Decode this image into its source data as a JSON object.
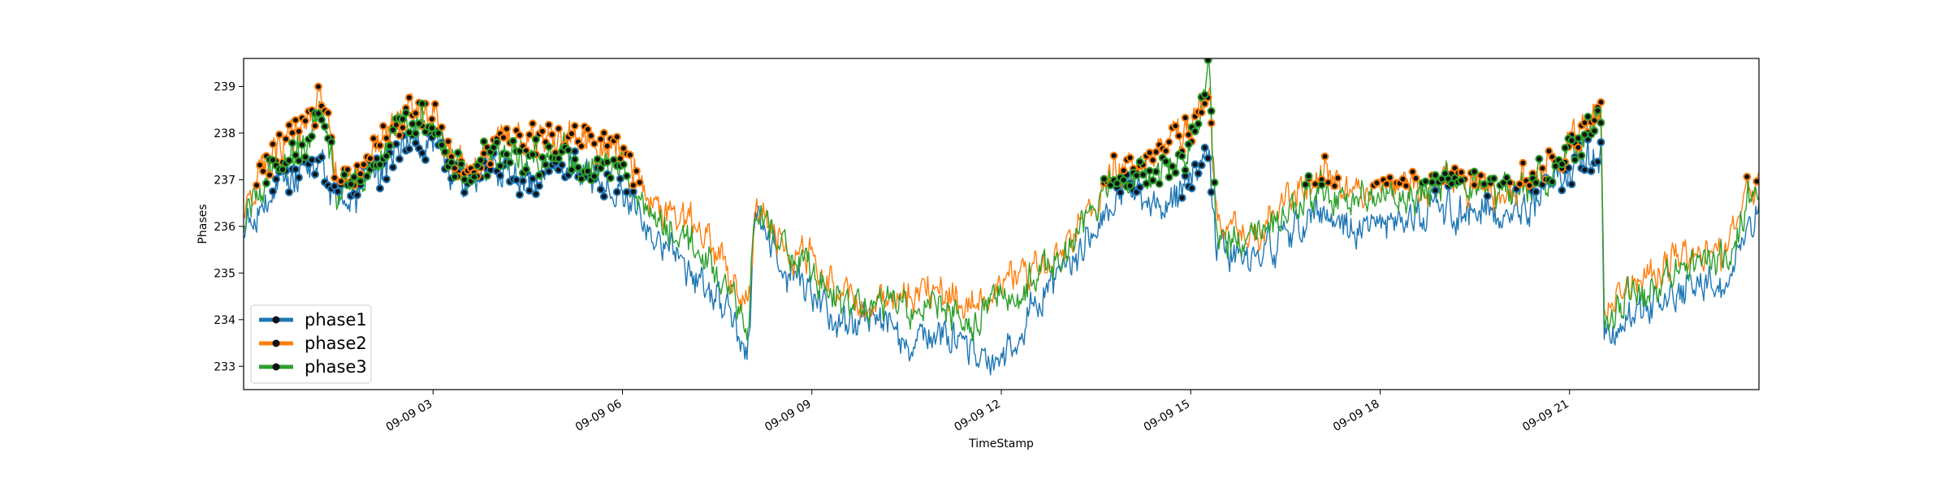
{
  "chart_data": {
    "type": "line",
    "title": "",
    "xlabel": "TimeStamp",
    "ylabel": "Phases",
    "xlim_hours": [
      0,
      24
    ],
    "ylim": [
      232.5,
      239.6
    ],
    "grid": false,
    "legend_position": "lower-left",
    "marker_threshold": 236.6,
    "x_ticks": [
      {
        "hour": 3,
        "label": "09-09 03"
      },
      {
        "hour": 6,
        "label": "09-09 06"
      },
      {
        "hour": 9,
        "label": "09-09 09"
      },
      {
        "hour": 12,
        "label": "09-09 12"
      },
      {
        "hour": 15,
        "label": "09-09 15"
      },
      {
        "hour": 18,
        "label": "09-09 18"
      },
      {
        "hour": 21,
        "label": "09-09 21"
      }
    ],
    "y_ticks": [
      {
        "value": 233,
        "label": "233"
      },
      {
        "value": 234,
        "label": "234"
      },
      {
        "value": 235,
        "label": "235"
      },
      {
        "value": 236,
        "label": "236"
      },
      {
        "value": 237,
        "label": "237"
      },
      {
        "value": 238,
        "label": "238"
      },
      {
        "value": 239,
        "label": "239"
      }
    ],
    "x_hours": [
      0,
      0.5,
      1,
      1.25,
      1.5,
      2,
      2.5,
      3,
      3.25,
      3.5,
      4,
      4.5,
      5,
      5.5,
      6,
      6.5,
      7,
      7.5,
      8,
      8.1,
      8.5,
      9,
      9.5,
      10,
      10.5,
      11,
      11.5,
      12,
      12.5,
      13,
      13.5,
      14,
      14.5,
      15,
      15.3,
      15.4,
      16,
      16.5,
      17,
      17.5,
      18,
      18.5,
      19,
      19.5,
      20,
      20.5,
      21,
      21.2,
      21.5,
      21.55,
      22,
      22.5,
      23,
      23.5,
      23.8,
      24
    ],
    "series": [
      {
        "name": "phase1",
        "color": "#1f77b4",
        "values": [
          236.0,
          236.9,
          237.1,
          237.4,
          236.3,
          237.0,
          237.7,
          237.9,
          237.2,
          236.9,
          237.3,
          236.9,
          237.3,
          237.1,
          236.8,
          235.8,
          235.0,
          234.4,
          233.4,
          236.2,
          235.3,
          234.5,
          233.8,
          234.2,
          233.5,
          233.7,
          233.3,
          233.2,
          234.2,
          235.0,
          236.0,
          236.9,
          236.3,
          237.0,
          237.6,
          235.5,
          235.3,
          235.8,
          236.3,
          236.0,
          236.1,
          236.2,
          236.4,
          236.3,
          236.2,
          236.6,
          237.3,
          237.6,
          237.5,
          233.6,
          234.0,
          234.5,
          234.8,
          234.8,
          235.8,
          236.4
        ]
      },
      {
        "name": "phase2",
        "color": "#ff7f0e",
        "values": [
          236.4,
          237.6,
          238.1,
          238.7,
          236.9,
          237.5,
          238.4,
          238.5,
          237.7,
          237.2,
          237.9,
          237.8,
          237.9,
          237.9,
          237.7,
          236.4,
          236.1,
          235.5,
          234.2,
          236.5,
          235.6,
          235.3,
          234.5,
          234.4,
          234.6,
          234.6,
          234.2,
          234.8,
          235.0,
          235.6,
          236.6,
          237.3,
          237.5,
          238.1,
          238.8,
          236.0,
          235.8,
          236.6,
          237.1,
          236.8,
          236.8,
          236.8,
          236.9,
          236.9,
          236.7,
          237.1,
          237.6,
          238.2,
          238.5,
          234.3,
          234.7,
          235.2,
          235.4,
          235.5,
          236.7,
          236.9
        ]
      },
      {
        "name": "phase3",
        "color": "#2ca02c",
        "values": [
          236.2,
          237.2,
          237.7,
          238.4,
          236.7,
          237.2,
          238.0,
          238.2,
          237.5,
          237.0,
          237.6,
          237.5,
          237.5,
          237.3,
          237.3,
          236.1,
          235.7,
          235.0,
          233.9,
          236.4,
          235.6,
          235.1,
          234.3,
          234.4,
          234.4,
          234.3,
          234.0,
          234.5,
          234.9,
          235.4,
          236.6,
          237.0,
          237.1,
          237.6,
          239.3,
          235.9,
          235.6,
          236.3,
          236.8,
          236.5,
          236.6,
          236.7,
          236.9,
          236.8,
          236.7,
          236.9,
          237.5,
          237.9,
          238.6,
          234.0,
          234.4,
          234.9,
          235.2,
          235.3,
          236.5,
          236.9
        ]
      }
    ]
  }
}
